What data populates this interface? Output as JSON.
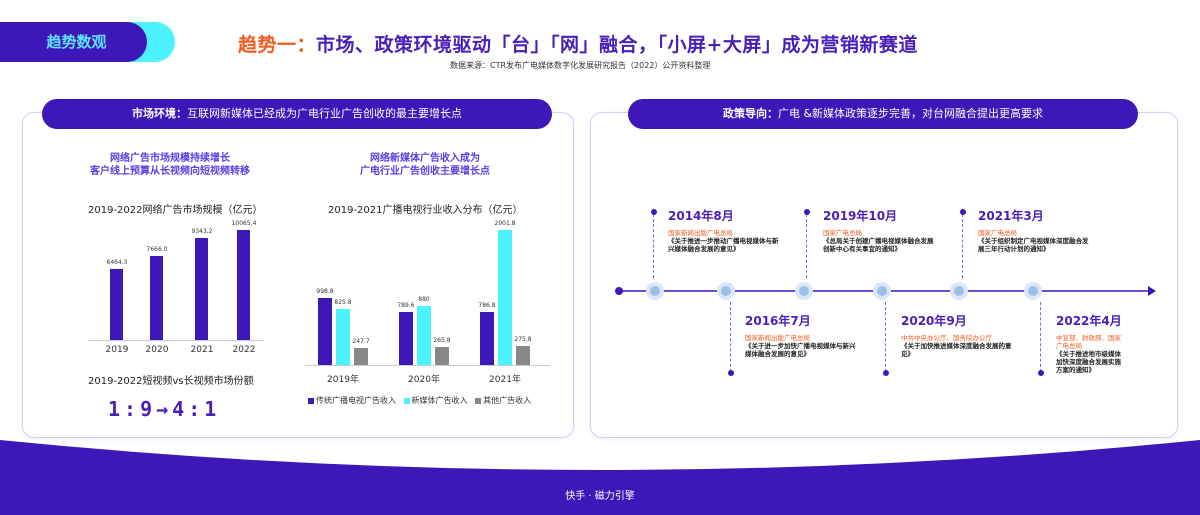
{
  "tag": {
    "label": "趋势数观"
  },
  "header": {
    "title_prefix": "趋势一：",
    "title_main": "市场、政策环境驱动「台」「网」融合，「小屏+大屏」成为营销新赛道",
    "source": "数据来源：CTR发布广电媒体数字化发展研究报告（2022）公开资料整理"
  },
  "left_panel": {
    "pill_label": "市场环境：",
    "pill_text": "互联网新媒体已经成为广电行业广告创收的最主要增长点",
    "chart1_subhead_1": "网络广告市场规模持续增长",
    "chart1_subhead_2": "客户线上预算从长视频向短视频转移",
    "chart2_subhead_1": "网络新媒体广告收入成为",
    "chart2_subhead_2": "广电行业广告创收主要增长点",
    "ratio_title": "2019-2022短视频vs长视频市场份额",
    "ratio_text": "1:9→4:1"
  },
  "right_panel": {
    "pill_label": "政策导向：",
    "pill_text": "广电 &新媒体政策逐步完善，对台网融合提出更高要求",
    "events": [
      {
        "date": "2014年8月",
        "org": "国家新闻出版广电总局",
        "doc": "《关于推进一步推动广播电视媒体与新兴媒体融合发展的意见》"
      },
      {
        "date": "2016年7月",
        "org": "国家新闻出版广电总局",
        "doc": "《关于进一步加快广播电视媒体与新兴媒体融合发展的意见》"
      },
      {
        "date": "2019年10月",
        "org": "国家广电总局",
        "doc": "《总局关于创建广播电视媒体融合发展创新中心有关事宜的通知》"
      },
      {
        "date": "2020年9月",
        "org": "中共中央办公厅、国务院办公厅",
        "doc": "《关于加快推进媒体深度融合发展的意见》"
      },
      {
        "date": "2021年3月",
        "org": "国家广电总局",
        "doc": "《关于组织制定广电视媒体深度融合发展三年行动计划的通知》"
      },
      {
        "date": "2022年4月",
        "org": "中宣部、财政部、国家广电总局",
        "doc": "《关于推进地市级媒体加快深度融合发展实施方案的通知》"
      }
    ]
  },
  "footer": {
    "brand": "快手 · 磁力引擎"
  },
  "colors": {
    "primary": "#3d17b8",
    "cyan": "#4cf2ff",
    "accent_orange": "#f45a1e",
    "gray": "#888888"
  },
  "chart_data": [
    {
      "type": "bar",
      "title": "2019-2022网络广告市场规模（亿元）",
      "categories": [
        "2019",
        "2020",
        "2021",
        "2022"
      ],
      "values": [
        6464.3,
        7666.0,
        9343.2,
        10065.4
      ],
      "xlabel": "",
      "ylabel": "亿元",
      "labels": [
        "6464.3",
        "7666.0",
        "9343.2",
        "10065.4"
      ]
    },
    {
      "type": "bar",
      "title": "2019-2021广播电视行业收入分布（亿元）",
      "categories": [
        "2019年",
        "2020年",
        "2021年"
      ],
      "series": [
        {
          "name": "传统广播电视广告收入",
          "color": "#3d17b8",
          "values": [
            998.8,
            789.6,
            786.8
          ],
          "labels": [
            "998.8",
            "789.6",
            "786.8"
          ]
        },
        {
          "name": "新媒体广告收入",
          "color": "#4cf2ff",
          "values": [
            825.8,
            880.0,
            2001.8
          ],
          "labels": [
            "825.8",
            "880",
            "2001.8"
          ]
        },
        {
          "name": "其他广告收入",
          "color": "#888888",
          "values": [
            247.7,
            265.8,
            275.8
          ],
          "labels": [
            "247.7",
            "265.8",
            "275.8"
          ]
        }
      ],
      "legend_position": "bottom"
    }
  ]
}
